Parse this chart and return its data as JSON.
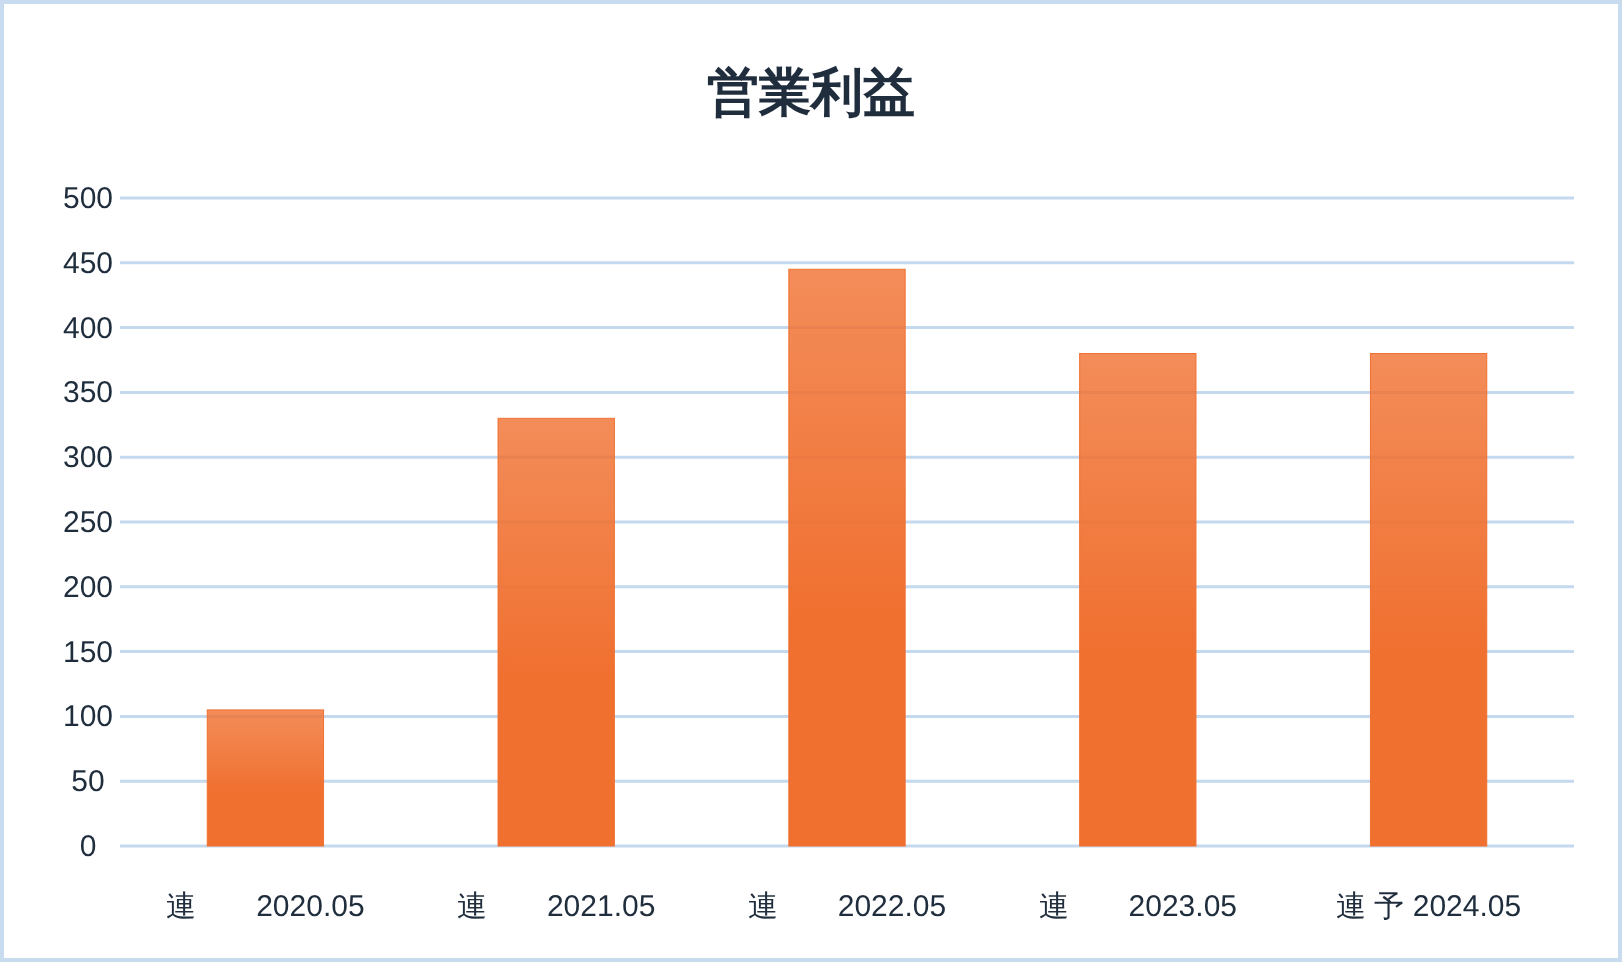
{
  "chart_data": {
    "type": "bar",
    "title": "営業利益",
    "categories": [
      "連　　2020.05",
      "連　　2021.05",
      "連　　2022.05",
      "連　　2023.05",
      "連 予 2024.05"
    ],
    "values": [
      105,
      330,
      445,
      380,
      380
    ],
    "color": "#f07030",
    "ylim": [
      0,
      500
    ],
    "yticks": [
      0,
      50,
      100,
      150,
      200,
      250,
      300,
      350,
      400,
      450,
      500
    ],
    "grid": "y"
  }
}
